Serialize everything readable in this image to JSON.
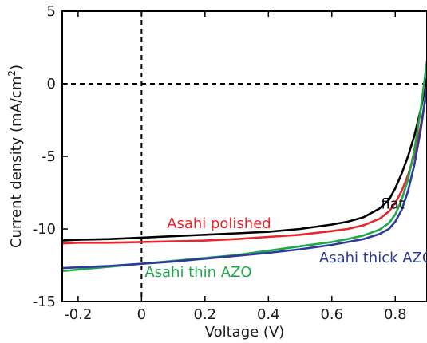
{
  "chart_data": {
    "type": "line",
    "xlabel": "Voltage (V)",
    "ylabel_main": "Current density (mA/cm",
    "ylabel_sup": "2",
    "ylabel_tail": ")",
    "xlim": [
      -0.25,
      0.9
    ],
    "ylim": [
      -15,
      5
    ],
    "x_ticks": [
      -0.2,
      0,
      0.2,
      0.4,
      0.6,
      0.8
    ],
    "x_tick_labels": [
      "-0.2",
      "0",
      "0.2",
      "0.4",
      "0.6",
      "0.8"
    ],
    "y_ticks": [
      -15,
      -10,
      -5,
      0,
      5
    ],
    "y_tick_labels": [
      "-15",
      "-10",
      "-5",
      "0",
      "5"
    ],
    "grid": false,
    "reference_lines": {
      "x": 0,
      "y": 0,
      "style": "dashed"
    },
    "series": [
      {
        "name": "flat",
        "color": "#000000",
        "x": [
          -0.25,
          -0.2,
          -0.1,
          0,
          0.1,
          0.2,
          0.3,
          0.4,
          0.5,
          0.6,
          0.65,
          0.7,
          0.75,
          0.78,
          0.8,
          0.82,
          0.84,
          0.86,
          0.88,
          0.9
        ],
        "y": [
          -10.8,
          -10.75,
          -10.7,
          -10.6,
          -10.5,
          -10.4,
          -10.3,
          -10.2,
          -10.0,
          -9.7,
          -9.5,
          -9.2,
          -8.6,
          -8.0,
          -7.2,
          -6.2,
          -5.0,
          -3.6,
          -1.8,
          0.4
        ]
      },
      {
        "name": "Asahi polished",
        "color": "#e8262b",
        "x": [
          -0.25,
          -0.2,
          -0.1,
          0,
          0.1,
          0.2,
          0.3,
          0.4,
          0.5,
          0.6,
          0.65,
          0.7,
          0.75,
          0.78,
          0.8,
          0.82,
          0.84,
          0.86,
          0.88,
          0.9
        ],
        "y": [
          -11.0,
          -10.95,
          -10.95,
          -10.9,
          -10.85,
          -10.8,
          -10.7,
          -10.55,
          -10.4,
          -10.15,
          -10.0,
          -9.75,
          -9.3,
          -8.8,
          -8.2,
          -7.4,
          -6.3,
          -4.9,
          -2.9,
          -0.5
        ]
      },
      {
        "name": "Asahi thin AZO",
        "color": "#1fa84a",
        "x": [
          -0.25,
          -0.2,
          -0.1,
          0,
          0.1,
          0.2,
          0.3,
          0.4,
          0.5,
          0.6,
          0.65,
          0.7,
          0.75,
          0.78,
          0.8,
          0.82,
          0.84,
          0.86,
          0.88,
          0.9
        ],
        "y": [
          -12.9,
          -12.8,
          -12.6,
          -12.4,
          -12.2,
          -12.0,
          -11.8,
          -11.5,
          -11.2,
          -10.9,
          -10.7,
          -10.45,
          -10.05,
          -9.6,
          -9.0,
          -8.0,
          -6.6,
          -4.6,
          -1.8,
          1.6
        ]
      },
      {
        "name": "Asahi thick AZO",
        "color": "#2e3a9b",
        "x": [
          -0.25,
          -0.2,
          -0.1,
          0,
          0.1,
          0.2,
          0.3,
          0.4,
          0.5,
          0.6,
          0.65,
          0.7,
          0.75,
          0.78,
          0.8,
          0.82,
          0.84,
          0.86,
          0.88,
          0.9
        ],
        "y": [
          -12.7,
          -12.65,
          -12.55,
          -12.4,
          -12.25,
          -12.05,
          -11.85,
          -11.65,
          -11.4,
          -11.1,
          -10.9,
          -10.7,
          -10.35,
          -10.0,
          -9.5,
          -8.7,
          -7.4,
          -5.6,
          -3.2,
          -0.2
        ]
      }
    ],
    "annotations": [
      {
        "text": "flat",
        "color": "#000000",
        "x": 0.755,
        "y": -8.6
      },
      {
        "text": "Asahi polished",
        "color": "#e8262b",
        "x": 0.08,
        "y": -9.95
      },
      {
        "text": "Asahi thin AZO",
        "color": "#1fa84a",
        "x": 0.01,
        "y": -13.3
      },
      {
        "text": "Asahi thick AZO",
        "color": "#2e3a9b",
        "x": 0.56,
        "y": -12.3
      }
    ]
  }
}
